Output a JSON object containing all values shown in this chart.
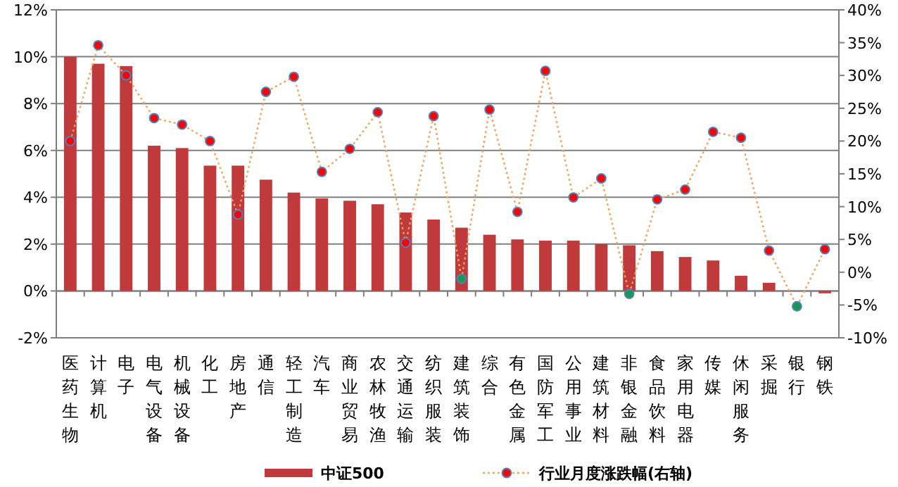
{
  "chart_data": {
    "type": "bar",
    "categories": [
      "医药生物",
      "计算机",
      "电子",
      "电气设备",
      "机械设备",
      "化工",
      "房地产",
      "通信",
      "轻工制造",
      "汽车",
      "商业贸易",
      "农林牧渔",
      "交通运输",
      "纺织服装",
      "建筑装饰",
      "综合",
      "有色金属",
      "国防军工",
      "公用事业",
      "建筑材料",
      "非银金融",
      "食品饮料",
      "家用电器",
      "传媒",
      "休闲服务",
      "采掘",
      "银行",
      "钢铁"
    ],
    "series": [
      {
        "name": "中证500",
        "color": "#c0393b",
        "values": [
          10,
          9.7,
          9.6,
          6.2,
          6.1,
          5.35,
          5.35,
          4.75,
          4.2,
          3.95,
          3.85,
          3.7,
          3.35,
          3.05,
          2.7,
          2.4,
          2.2,
          2.15,
          2.15,
          2.0,
          1.95,
          1.7,
          1.45,
          1.3,
          0.65,
          0.35,
          0,
          -0.1
        ]
      },
      {
        "name": "行业月度涨跌幅(右轴)",
        "type": "line",
        "axis": "y2",
        "color": "#f4a460",
        "line_style": "dotted",
        "marker": "circle",
        "values": [
          20,
          34.6,
          30,
          23.5,
          22.5,
          20,
          8.8,
          27.5,
          29.8,
          15.3,
          18.8,
          24.4,
          4.5,
          23.8,
          -1,
          24.8,
          9.2,
          30.7,
          11.4,
          14.3,
          -3.3,
          11.1,
          12.6,
          21.4,
          20.5,
          3.3,
          -5.2,
          3.5
        ],
        "colors": [
          "#ff0000",
          "#ff0000",
          "#ff0000",
          "#ff0000",
          "#ff0000",
          "#ff0000",
          "#ff0000",
          "#ff0000",
          "#ff0000",
          "#ff0000",
          "#ff0000",
          "#ff0000",
          "#ff0000",
          "#ff0000",
          "#1a9850",
          "#ff0000",
          "#ff0000",
          "#ff0000",
          "#ff0000",
          "#ff0000",
          "#1a9850",
          "#ff0000",
          "#ff0000",
          "#ff0000",
          "#ff0000",
          "#ff0000",
          "#1a9850",
          "#ff0000"
        ]
      }
    ],
    "ylim": [
      -2,
      12
    ],
    "yticks": [
      {
        "value": -2,
        "label": "-2%"
      },
      {
        "value": 0,
        "label": "0%"
      },
      {
        "value": 2,
        "label": "2%"
      },
      {
        "value": 4,
        "label": "4%"
      },
      {
        "value": 6,
        "label": "6%"
      },
      {
        "value": 8,
        "label": "8%"
      },
      {
        "value": 10,
        "label": "10%"
      },
      {
        "value": 12,
        "label": "12%"
      }
    ],
    "y2lim": [
      -10,
      40
    ],
    "y2ticks": [
      {
        "value": -10,
        "label": "-10%"
      },
      {
        "value": -5,
        "label": "-5%"
      },
      {
        "value": 0,
        "label": "0%"
      },
      {
        "value": 5,
        "label": "5%"
      },
      {
        "value": 10,
        "label": "10%"
      },
      {
        "value": 15,
        "label": "15%"
      },
      {
        "value": 20,
        "label": "20%"
      },
      {
        "value": 25,
        "label": "25%"
      },
      {
        "value": 30,
        "label": "30%"
      },
      {
        "value": 35,
        "label": "35%"
      },
      {
        "value": 40,
        "label": "40%"
      }
    ],
    "grid": "y",
    "legend": "bottom"
  }
}
